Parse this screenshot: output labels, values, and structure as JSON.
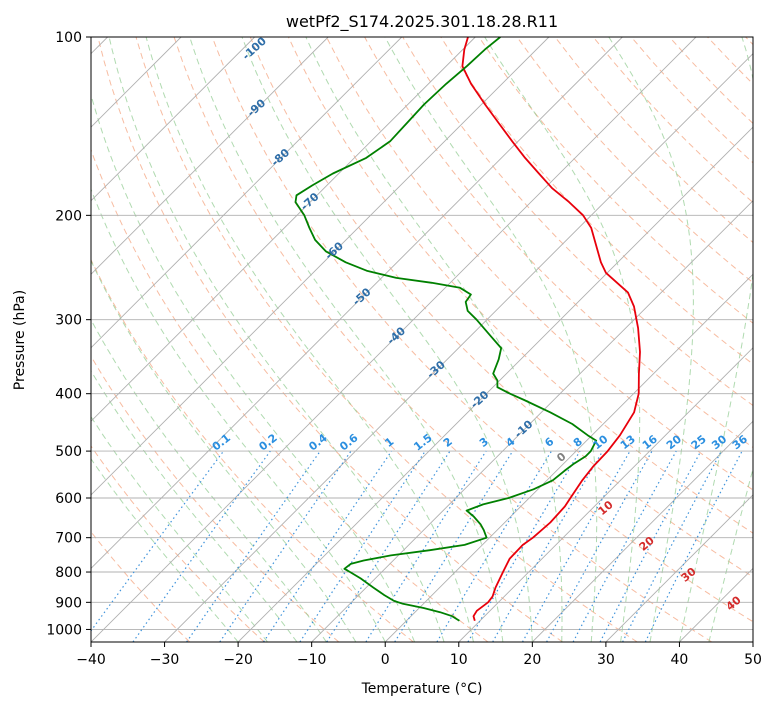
{
  "chart_data": {
    "type": "line",
    "title": "wetPf2_S174.2025.301.18.28.R11",
    "xlabel": "Temperature (°C)",
    "ylabel": "Pressure (hPa)",
    "xlim": [
      -40,
      50
    ],
    "ylim": [
      1050,
      100
    ],
    "y_scale": "log",
    "skew": "skew-T",
    "x_ticks": [
      -40,
      -30,
      -20,
      -10,
      0,
      10,
      20,
      30,
      40,
      50
    ],
    "y_ticks": [
      100,
      200,
      300,
      400,
      500,
      600,
      700,
      800,
      900,
      1000
    ],
    "grid": true,
    "series": [
      {
        "color": "#e8000b",
        "points": [
          [
            967,
            9.3
          ],
          [
            950,
            8.5
          ],
          [
            930,
            8.2
          ],
          [
            900,
            8.6
          ],
          [
            880,
            8.4
          ],
          [
            850,
            7.6
          ],
          [
            800,
            6.5
          ],
          [
            760,
            5.6
          ],
          [
            720,
            5.5
          ],
          [
            700,
            5.9
          ],
          [
            660,
            6.2
          ],
          [
            620,
            6.0
          ],
          [
            600,
            5.6
          ],
          [
            560,
            4.8
          ],
          [
            530,
            4.4
          ],
          [
            500,
            4.3
          ],
          [
            470,
            3.8
          ],
          [
            430,
            2.6
          ],
          [
            400,
            0.7
          ],
          [
            370,
            -2.0
          ],
          [
            340,
            -4.8
          ],
          [
            310,
            -8.3
          ],
          [
            285,
            -11.8
          ],
          [
            270,
            -14.5
          ],
          [
            260,
            -17.3
          ],
          [
            250,
            -20.2
          ],
          [
            240,
            -22.3
          ],
          [
            225,
            -25.2
          ],
          [
            210,
            -28.3
          ],
          [
            200,
            -31.1
          ],
          [
            190,
            -34.8
          ],
          [
            180,
            -39.0
          ],
          [
            170,
            -42.8
          ],
          [
            160,
            -46.8
          ],
          [
            150,
            -50.8
          ],
          [
            140,
            -55.0
          ],
          [
            130,
            -59.5
          ],
          [
            120,
            -64.2
          ],
          [
            112,
            -67.8
          ],
          [
            105,
            -69.8
          ],
          [
            100,
            -71.0
          ]
        ]
      },
      {
        "color": "#008000",
        "points": [
          [
            967,
            7.2
          ],
          [
            950,
            5.6
          ],
          [
            935,
            3.4
          ],
          [
            920,
            0.6
          ],
          [
            905,
            -2.8
          ],
          [
            895,
            -4.4
          ],
          [
            875,
            -6.5
          ],
          [
            850,
            -9.0
          ],
          [
            820,
            -12.0
          ],
          [
            800,
            -14.3
          ],
          [
            790,
            -15.5
          ],
          [
            775,
            -15.3
          ],
          [
            765,
            -14.0
          ],
          [
            750,
            -11.0
          ],
          [
            735,
            -6.4
          ],
          [
            720,
            -2.4
          ],
          [
            700,
            -0.4
          ],
          [
            680,
            -1.8
          ],
          [
            665,
            -3.0
          ],
          [
            645,
            -5.0
          ],
          [
            630,
            -6.8
          ],
          [
            615,
            -5.4
          ],
          [
            600,
            -2.8
          ],
          [
            580,
            -0.6
          ],
          [
            560,
            0.8
          ],
          [
            540,
            1.1
          ],
          [
            525,
            1.4
          ],
          [
            510,
            2.0
          ],
          [
            500,
            2.0
          ],
          [
            480,
            1.3
          ],
          [
            470,
            -0.6
          ],
          [
            450,
            -4.2
          ],
          [
            430,
            -8.8
          ],
          [
            410,
            -14.0
          ],
          [
            400,
            -16.8
          ],
          [
            390,
            -19.4
          ],
          [
            380,
            -20.3
          ],
          [
            370,
            -21.8
          ],
          [
            350,
            -23.0
          ],
          [
            335,
            -24.2
          ],
          [
            320,
            -27.2
          ],
          [
            300,
            -31.4
          ],
          [
            290,
            -33.8
          ],
          [
            280,
            -35.3
          ],
          [
            272,
            -35.6
          ],
          [
            265,
            -38.0
          ],
          [
            260,
            -42.5
          ],
          [
            255,
            -48.0
          ],
          [
            248,
            -53.0
          ],
          [
            240,
            -57.0
          ],
          [
            230,
            -61.2
          ],
          [
            220,
            -64.2
          ],
          [
            210,
            -66.6
          ],
          [
            200,
            -69.0
          ],
          [
            190,
            -72.0
          ],
          [
            185,
            -72.8
          ],
          [
            178,
            -72.0
          ],
          [
            170,
            -70.8
          ],
          [
            160,
            -68.4
          ],
          [
            150,
            -67.4
          ],
          [
            140,
            -67.6
          ],
          [
            130,
            -67.8
          ],
          [
            120,
            -67.6
          ],
          [
            112,
            -67.2
          ],
          [
            105,
            -67.0
          ],
          [
            100,
            -66.6
          ]
        ]
      }
    ],
    "mixing_ratio_labels": [
      "0.1",
      "0.2",
      "0.4",
      "0.6",
      "1",
      "1.5",
      "2",
      "3",
      "4",
      "6",
      "8",
      "10",
      "13",
      "16",
      "20",
      "25",
      "30",
      "36"
    ],
    "mixing_ratio_values": [
      0.1,
      0.2,
      0.4,
      0.6,
      1,
      1.5,
      2,
      3,
      4,
      6,
      8,
      10,
      13,
      16,
      20,
      25,
      30,
      36
    ],
    "isotherm_labels": [
      "-100",
      "-90",
      "-80",
      "-70",
      "-60",
      "-50",
      "-40",
      "-30",
      "-20",
      "-10"
    ],
    "isotherm_label_pressures": [
      100,
      132,
      160,
      190,
      230,
      275,
      320,
      365,
      410,
      460
    ],
    "wet_bulb_labels": [
      "0",
      "10",
      "20",
      "30",
      "40"
    ],
    "wet_bulb_label_temps": [
      24,
      30,
      35.6,
      41.3,
      47.4
    ],
    "wet_bulb_label_pressures": [
      513,
      625,
      718,
      810,
      905
    ]
  }
}
